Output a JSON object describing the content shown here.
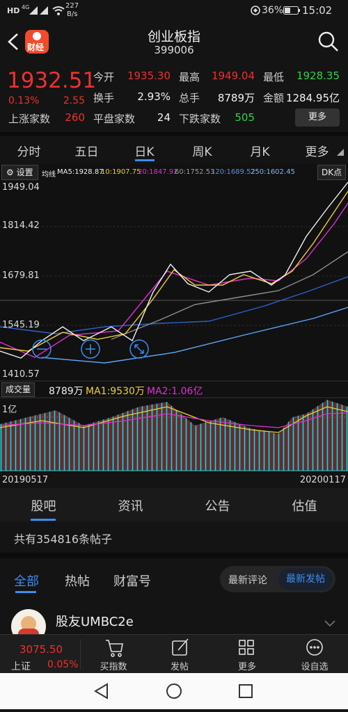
{
  "status_bar": {
    "hd": "HD",
    "network": "4G",
    "speed": "227",
    "speed_unit": "B/s",
    "battery": "36%",
    "time": "15:02"
  },
  "header": {
    "badge": "财经",
    "title": "创业板指",
    "code": "399006"
  },
  "quote": {
    "price": "1932.51",
    "change_pct": "0.13%",
    "change": "2.55",
    "rows": [
      [
        {
          "label": "今开",
          "value": "1935.30"
        },
        {
          "label": "最高",
          "value": "1949.04"
        },
        {
          "label": "最低",
          "value": "1928.35"
        }
      ],
      [
        {
          "label": "换手",
          "value": "2.93%"
        },
        {
          "label": "总手",
          "value": "8789万"
        },
        {
          "label": "金额",
          "value": "1284.95亿"
        }
      ],
      [
        {
          "label": "上涨家数",
          "value": "260"
        },
        {
          "label": "平盘家数",
          "value": "24"
        },
        {
          "label": "下跌家数",
          "value": "505"
        }
      ]
    ],
    "more": "更多"
  },
  "period_tabs": [
    "分时",
    "五日",
    "日K",
    "周K",
    "月K",
    "更多"
  ],
  "chart": {
    "settings": "设置",
    "ma_title": "均线",
    "ma": [
      "MA5:1928.87",
      "10:1907.75",
      "20:1847.92",
      "60:1752.53",
      "120:1689.52",
      "250:1602.45"
    ],
    "dk": "DK点",
    "price_labels": [
      "1949.04",
      "1814.42",
      "1679.81",
      "1545.19",
      "1410.57"
    ],
    "volume_title": "成交量",
    "volume": "8789万",
    "volume_ma": [
      "MA1:9530万",
      "MA2:1.06亿"
    ],
    "volume_axis": "1亿",
    "start_date": "20190517",
    "end_date": "20200117"
  },
  "section_tabs": [
    "股吧",
    "资讯",
    "公告",
    "估值"
  ],
  "post_count": "共有354816条帖子",
  "filter_tabs": [
    "全部",
    "热帖",
    "财富号"
  ],
  "sort_tabs": [
    "最新评论",
    "最新发帖"
  ],
  "post": {
    "user": "股友UMBC2e"
  },
  "bottom_bar": {
    "index_value": "3075.50",
    "index_name": "上证",
    "index_change": "0.05%",
    "actions": [
      "买指数",
      "发帖",
      "更多",
      "设自选"
    ]
  }
}
